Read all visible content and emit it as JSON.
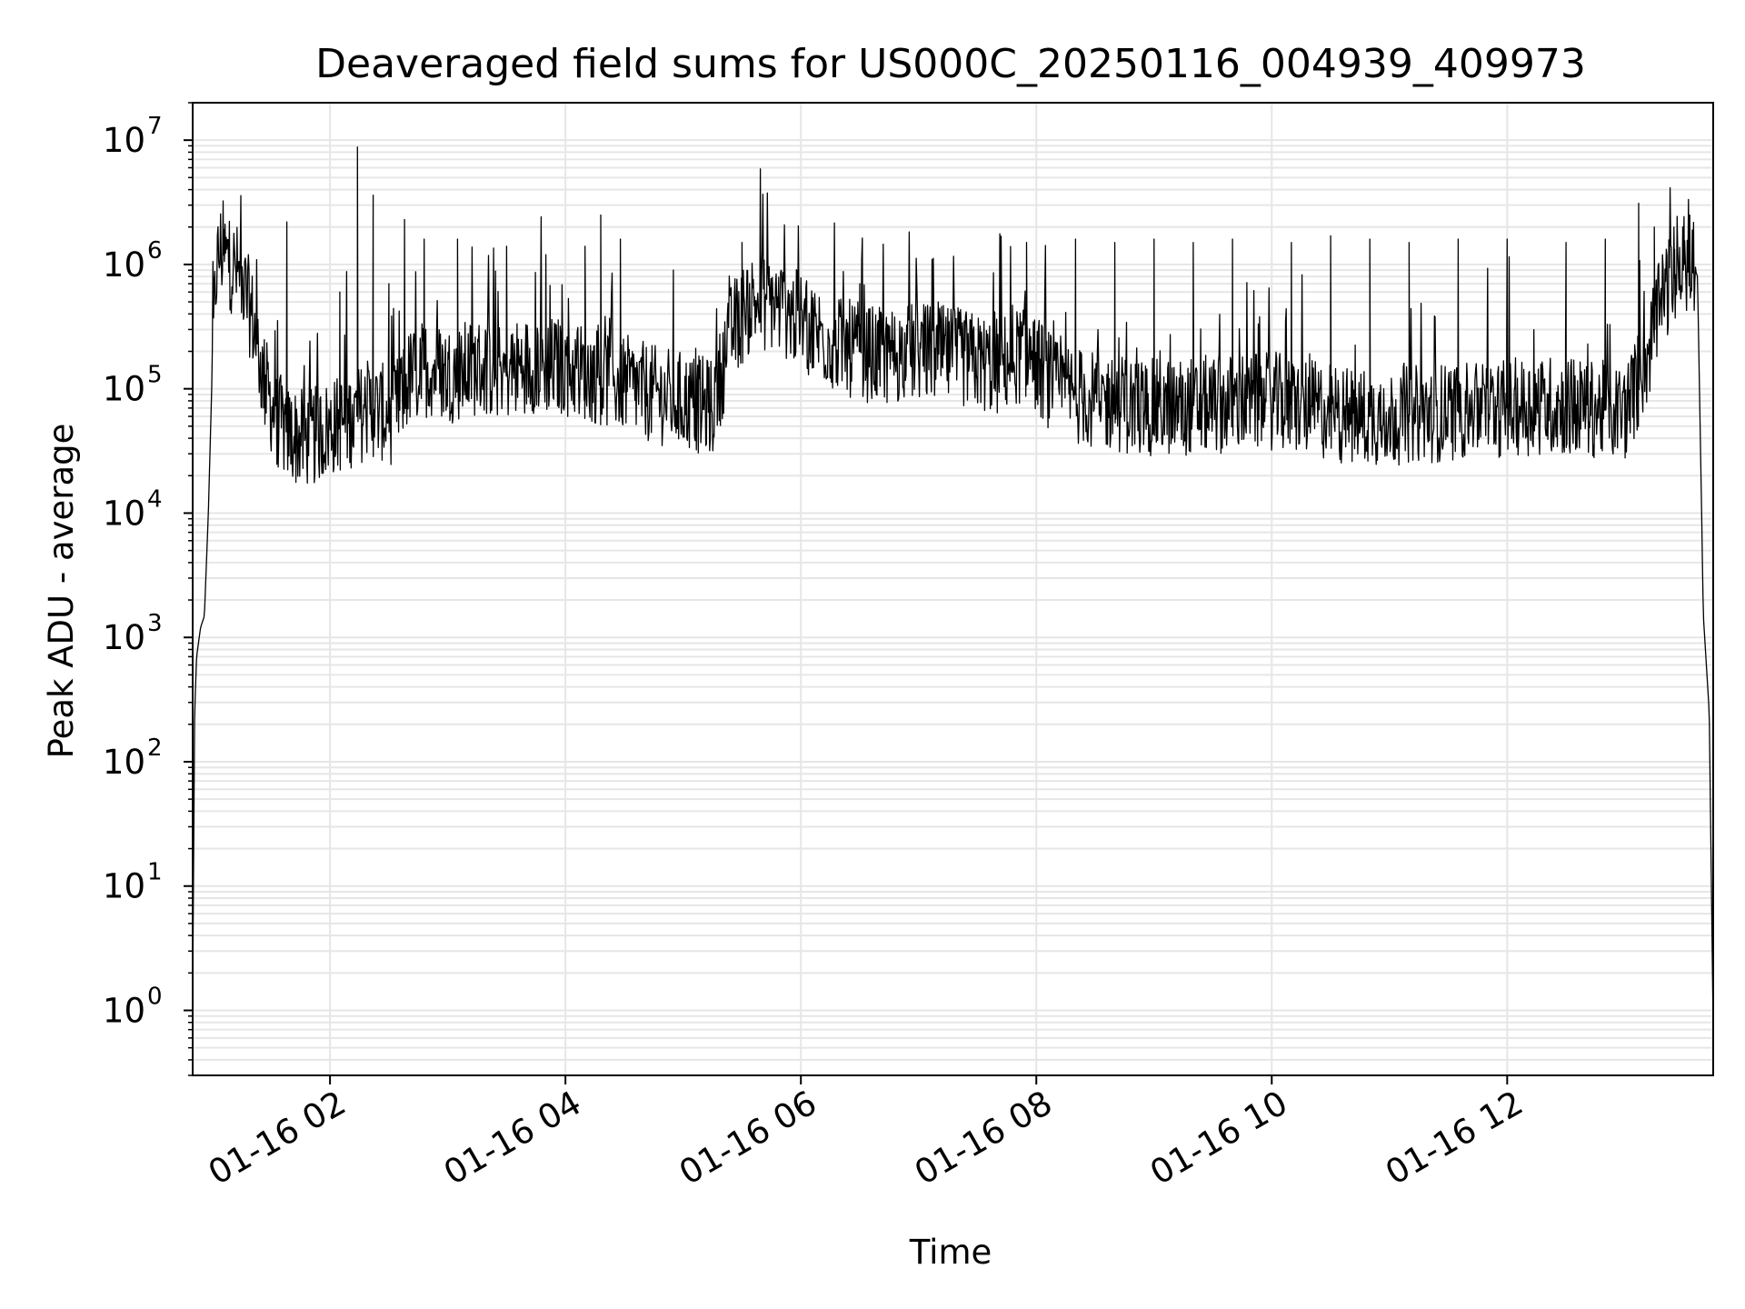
{
  "chart_data": {
    "type": "line",
    "title": "Deaveraged field sums for US000C_20250116_004939_409973",
    "xlabel": "Time",
    "ylabel": "Peak ADU - average",
    "x_scale": "time",
    "y_scale": "log",
    "xlim": [
      "2025-01-16 00:50",
      "2025-01-16 13:45"
    ],
    "ylim": [
      0.3,
      20000000
    ],
    "grid": true,
    "line_color": "#000000",
    "grid_color": "#e6e6e6",
    "x_ticks": [
      {
        "value": "2025-01-16 02:00",
        "label": "01-16 02"
      },
      {
        "value": "2025-01-16 04:00",
        "label": "01-16 04"
      },
      {
        "value": "2025-01-16 06:00",
        "label": "01-16 06"
      },
      {
        "value": "2025-01-16 08:00",
        "label": "01-16 08"
      },
      {
        "value": "2025-01-16 10:00",
        "label": "01-16 10"
      },
      {
        "value": "2025-01-16 12:00",
        "label": "01-16 12"
      }
    ],
    "y_ticks": [
      {
        "value": 1,
        "base": "10",
        "exp": "0"
      },
      {
        "value": 10,
        "base": "10",
        "exp": "1"
      },
      {
        "value": 100,
        "base": "10",
        "exp": "2"
      },
      {
        "value": 1000,
        "base": "10",
        "exp": "3"
      },
      {
        "value": 10000,
        "base": "10",
        "exp": "4"
      },
      {
        "value": 100000,
        "base": "10",
        "exp": "5"
      },
      {
        "value": 1000000,
        "base": "10",
        "exp": "6"
      },
      {
        "value": 10000000,
        "base": "10",
        "exp": "7"
      }
    ],
    "series": [
      {
        "x": [
          "2025-01-16 00:50",
          "2025-01-16 00:51",
          "2025-01-16 00:52",
          "2025-01-16 00:54",
          "2025-01-16 00:56",
          "2025-01-16 00:58",
          "2025-01-16 01:00",
          "2025-01-16 01:02",
          "2025-01-16 01:04",
          "2025-01-16 01:08",
          "2025-01-16 01:14",
          "2025-01-16 01:20",
          "2025-01-16 01:26",
          "2025-01-16 01:32",
          "2025-01-16 01:38",
          "2025-01-16 01:44",
          "2025-01-16 01:50",
          "2025-01-16 01:56",
          "2025-01-16 02:02",
          "2025-01-16 02:08",
          "2025-01-16 02:14",
          "2025-01-16 02:20",
          "2025-01-16 02:26",
          "2025-01-16 02:32",
          "2025-01-16 02:40",
          "2025-01-16 02:50",
          "2025-01-16 03:00",
          "2025-01-16 03:15",
          "2025-01-16 03:30",
          "2025-01-16 03:45",
          "2025-01-16 04:00",
          "2025-01-16 04:15",
          "2025-01-16 04:30",
          "2025-01-16 04:45",
          "2025-01-16 05:00",
          "2025-01-16 05:15",
          "2025-01-16 05:25",
          "2025-01-16 05:35",
          "2025-01-16 05:45",
          "2025-01-16 05:55",
          "2025-01-16 06:05",
          "2025-01-16 06:20",
          "2025-01-16 06:40",
          "2025-01-16 07:00",
          "2025-01-16 07:20",
          "2025-01-16 07:40",
          "2025-01-16 07:55",
          "2025-01-16 08:10",
          "2025-01-16 08:30",
          "2025-01-16 09:00",
          "2025-01-16 09:30",
          "2025-01-16 10:00",
          "2025-01-16 10:20",
          "2025-01-16 10:40",
          "2025-01-16 11:00",
          "2025-01-16 11:30",
          "2025-01-16 11:50",
          "2025-01-16 12:00",
          "2025-01-16 12:20",
          "2025-01-16 12:40",
          "2025-01-16 13:00",
          "2025-01-16 13:10",
          "2025-01-16 13:20",
          "2025-01-16 13:30",
          "2025-01-16 13:34",
          "2025-01-16 13:37",
          "2025-01-16 13:40",
          "2025-01-16 13:43",
          "2025-01-16 13:45"
        ],
        "y": [
          1.3,
          250,
          700,
          1200,
          1500,
          10000,
          150000,
          900000,
          1300000,
          1100000,
          800000,
          400000,
          120000,
          60000,
          45000,
          40000,
          40000,
          45000,
          50000,
          55000,
          60000,
          70000,
          65000,
          60000,
          120000,
          150000,
          130000,
          150000,
          140000,
          160000,
          150000,
          130000,
          110000,
          90000,
          80000,
          70000,
          300000,
          500000,
          500000,
          400000,
          300000,
          220000,
          180000,
          200000,
          180000,
          150000,
          200000,
          100000,
          80000,
          70000,
          75000,
          80000,
          70000,
          60000,
          60000,
          65000,
          70000,
          70000,
          75000,
          70000,
          65000,
          150000,
          600000,
          1000000,
          1100000,
          800000,
          1500,
          250,
          0.7
        ],
        "spikes": [
          {
            "x": "2025-01-16 01:06",
            "y": 1600000
          },
          {
            "x": "2025-01-16 01:38",
            "y": 2200000
          },
          {
            "x": "2025-01-16 02:05",
            "y": 600000
          },
          {
            "x": "2025-01-16 02:14",
            "y": 8800000
          },
          {
            "x": "2025-01-16 02:22",
            "y": 3600000
          },
          {
            "x": "2025-01-16 02:30",
            "y": 700000
          },
          {
            "x": "2025-01-16 02:38",
            "y": 2300000
          },
          {
            "x": "2025-01-16 02:48",
            "y": 1600000
          },
          {
            "x": "2025-01-16 03:05",
            "y": 1600000
          },
          {
            "x": "2025-01-16 03:30",
            "y": 1400000
          },
          {
            "x": "2025-01-16 03:50",
            "y": 1200000
          },
          {
            "x": "2025-01-16 04:10",
            "y": 1400000
          },
          {
            "x": "2025-01-16 04:18",
            "y": 2500000
          },
          {
            "x": "2025-01-16 04:28",
            "y": 1600000
          },
          {
            "x": "2025-01-16 04:55",
            "y": 900000
          },
          {
            "x": "2025-01-16 05:30",
            "y": 1500000
          },
          {
            "x": "2025-01-16 06:30",
            "y": 700000
          },
          {
            "x": "2025-01-16 07:10",
            "y": 500000
          },
          {
            "x": "2025-01-16 07:55",
            "y": 1500000
          },
          {
            "x": "2025-01-16 08:20",
            "y": 1600000
          },
          {
            "x": "2025-01-16 08:40",
            "y": 1500000
          },
          {
            "x": "2025-01-16 09:00",
            "y": 1600000
          },
          {
            "x": "2025-01-16 09:20",
            "y": 1500000
          },
          {
            "x": "2025-01-16 09:40",
            "y": 1600000
          },
          {
            "x": "2025-01-16 10:10",
            "y": 1500000
          },
          {
            "x": "2025-01-16 10:30",
            "y": 1700000
          },
          {
            "x": "2025-01-16 10:50",
            "y": 1600000
          },
          {
            "x": "2025-01-16 11:10",
            "y": 1500000
          },
          {
            "x": "2025-01-16 11:35",
            "y": 1600000
          },
          {
            "x": "2025-01-16 12:00",
            "y": 1600000
          },
          {
            "x": "2025-01-16 12:30",
            "y": 1500000
          },
          {
            "x": "2025-01-16 12:50",
            "y": 1600000
          },
          {
            "x": "2025-01-16 13:07",
            "y": 3100000
          },
          {
            "x": "2025-01-16 13:15",
            "y": 2000000
          },
          {
            "x": "2025-01-16 13:25",
            "y": 2000000
          },
          {
            "x": "2025-01-16 13:30",
            "y": 1800000
          }
        ]
      }
    ]
  }
}
